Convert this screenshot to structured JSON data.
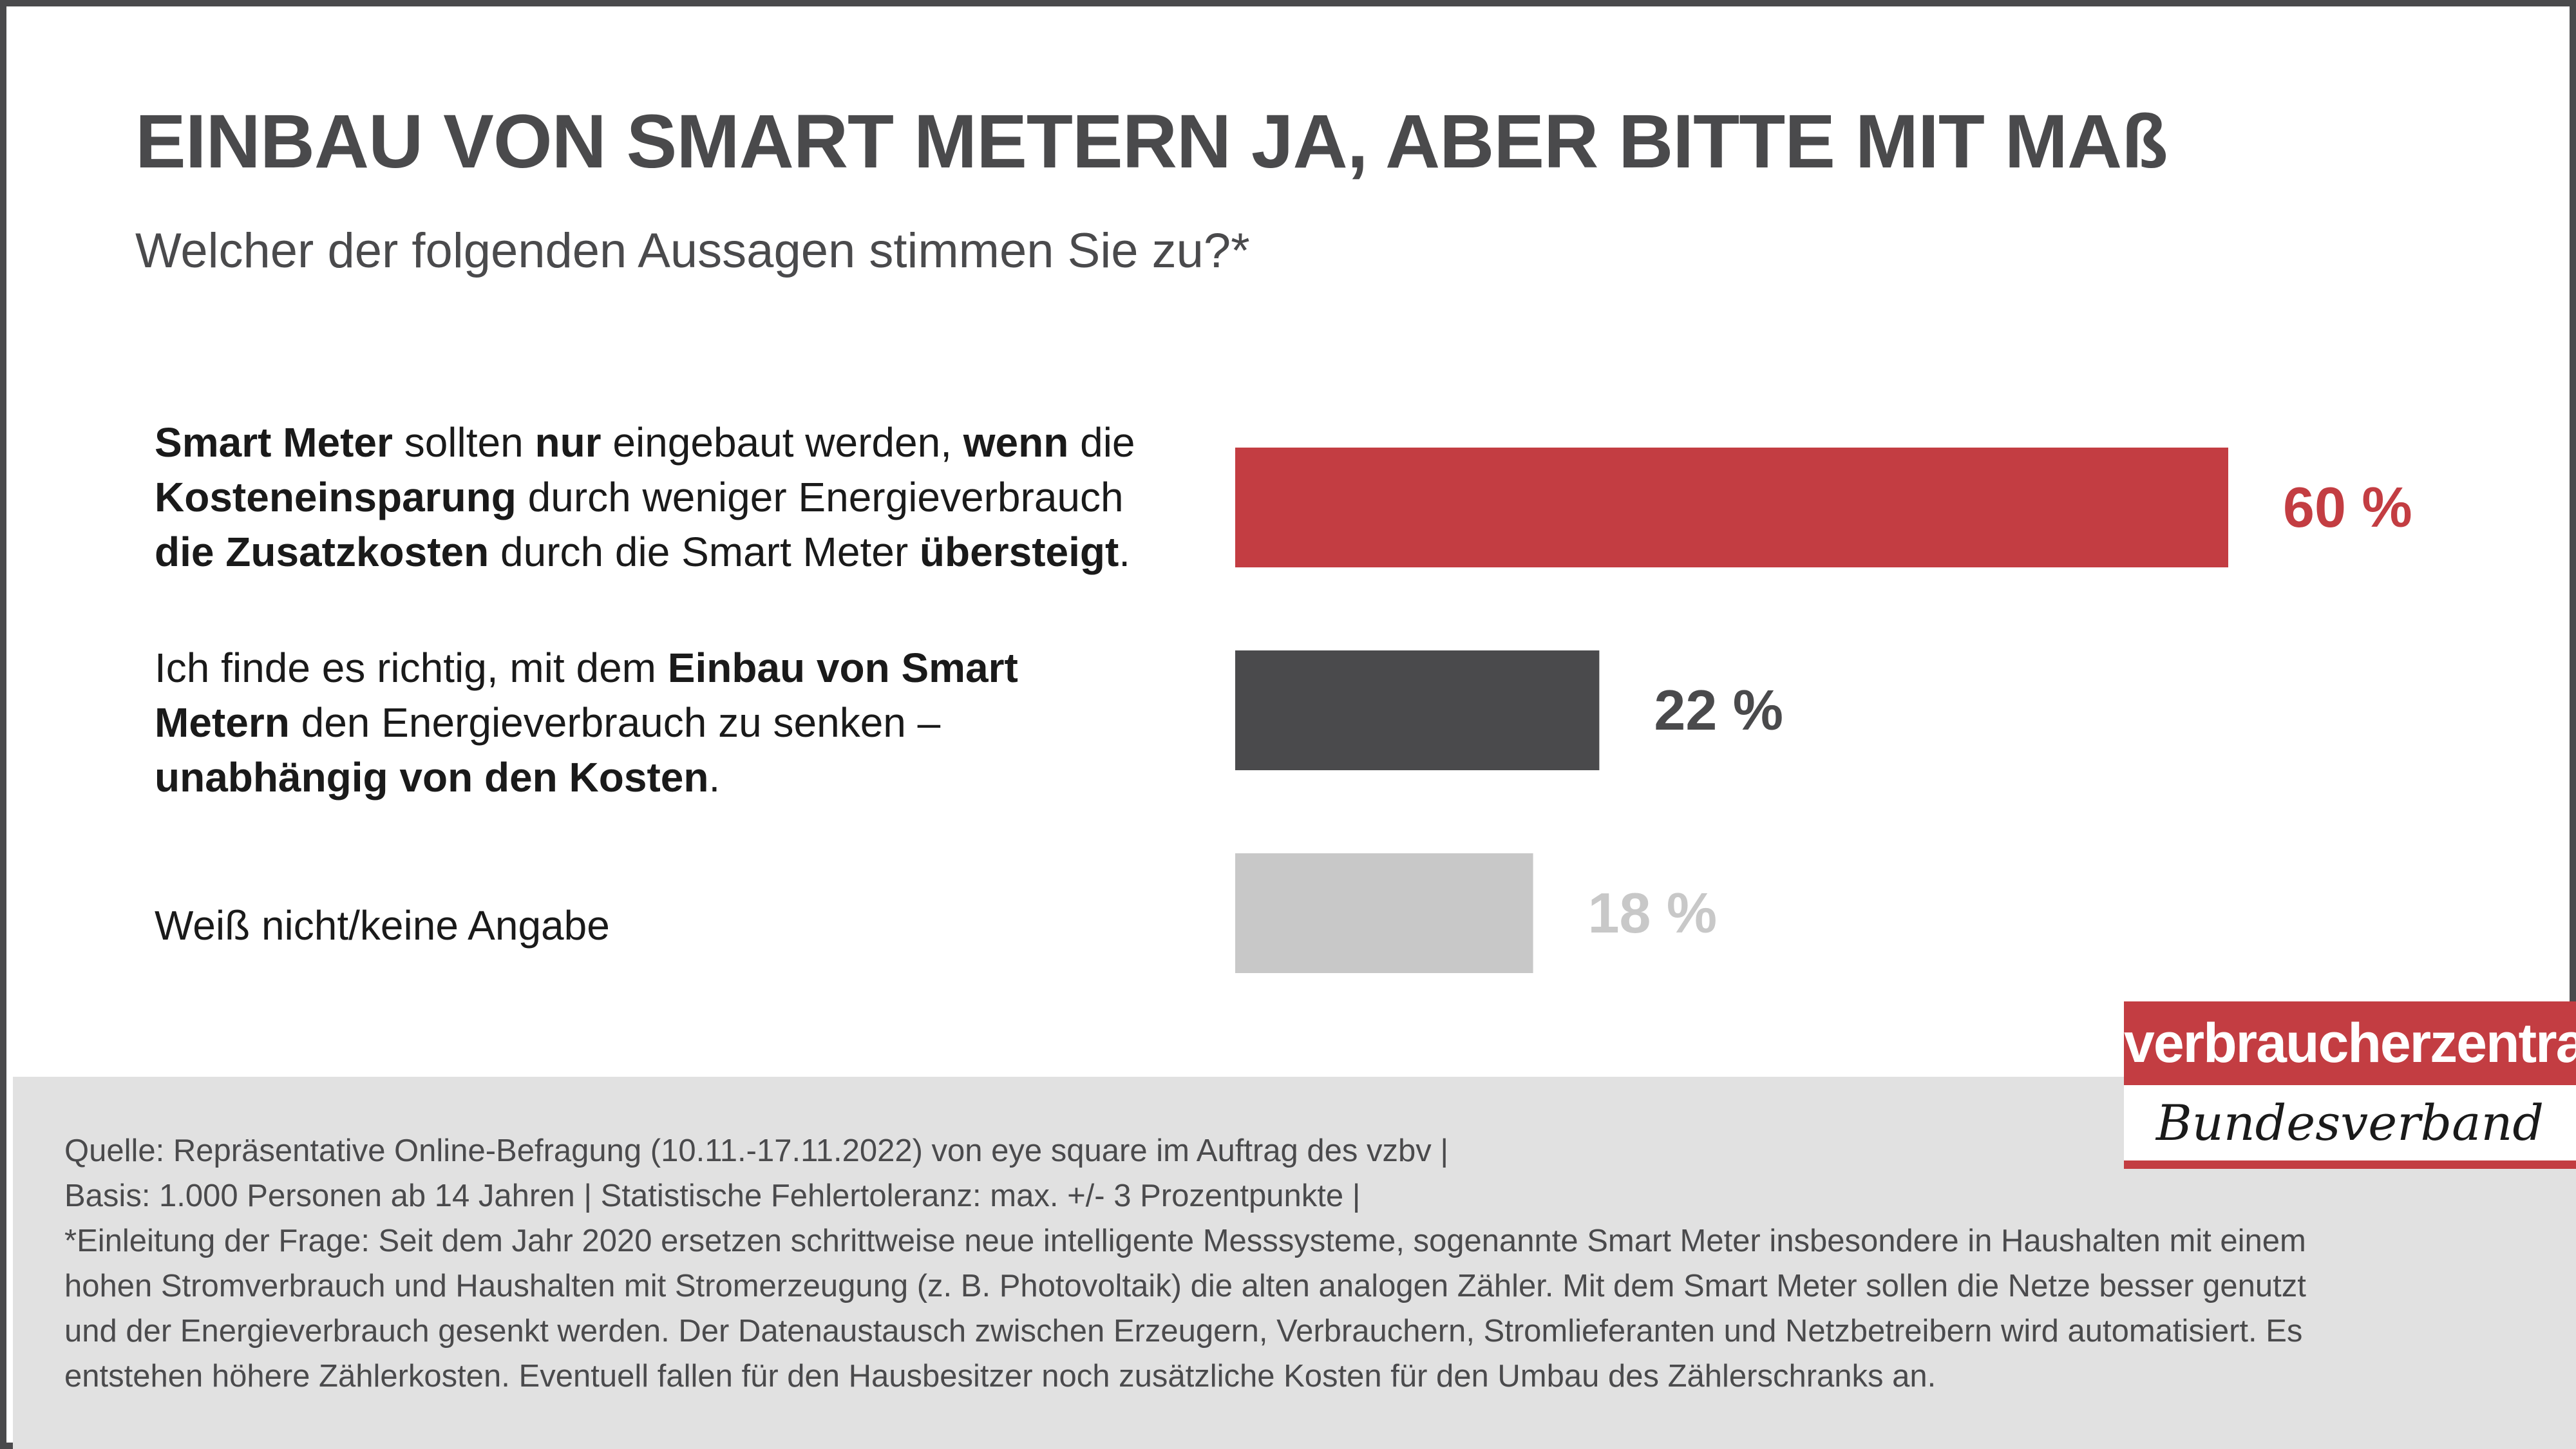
{
  "header": {
    "title": "EINBAU VON SMART METERN JA, ABER BITTE MIT MAß",
    "subtitle": "Welcher der folgenden Aussagen stimmen Sie zu?*"
  },
  "statements": [
    {
      "segments": [
        {
          "text": "Smart Meter",
          "bold": true
        },
        {
          "text": " sollten ",
          "bold": false
        },
        {
          "text": "nur",
          "bold": true
        },
        {
          "text": " eingebaut werden, ",
          "bold": false
        },
        {
          "text": "wenn",
          "bold": true
        },
        {
          "text": " die ",
          "bold": false
        },
        {
          "br": true
        },
        {
          "text": "Kosteneinsparung",
          "bold": true
        },
        {
          "text": " durch weniger Energieverbrauch ",
          "bold": false
        },
        {
          "br": true
        },
        {
          "text": "die Zusatzkosten",
          "bold": true
        },
        {
          "text": " durch die Smart Meter ",
          "bold": false
        },
        {
          "text": "übersteigt",
          "bold": true
        },
        {
          "text": ".",
          "bold": false
        }
      ]
    },
    {
      "segments": [
        {
          "text": "Ich finde es richtig, mit dem ",
          "bold": false
        },
        {
          "text": "Einbau von Smart",
          "bold": true
        },
        {
          "br": true
        },
        {
          "text": "Metern",
          "bold": true
        },
        {
          "text": " den Energieverbrauch zu senken – ",
          "bold": false
        },
        {
          "br": true
        },
        {
          "text": "unabhängig von den Kosten",
          "bold": true
        },
        {
          "text": ".",
          "bold": false
        }
      ]
    },
    {
      "segments": [
        {
          "text": "Weiß nicht/keine Angabe",
          "bold": false
        }
      ]
    }
  ],
  "chart_data": {
    "type": "bar",
    "orientation": "horizontal",
    "categories": [
      "Smart Meter sollten nur eingebaut werden, wenn die Kosteneinsparung durch weniger Energieverbrauch die Zusatzkosten durch die Smart Meter übersteigt.",
      "Ich finde es richtig, mit dem Einbau von Smart Metern den Energieverbrauch zu senken – unabhängig von den Kosten.",
      "Weiß nicht/keine Angabe"
    ],
    "values": [
      60,
      22,
      18
    ],
    "value_labels": [
      "60 %",
      "22 %",
      "18 %"
    ],
    "colors": [
      "#c33d42",
      "#4a4a4c",
      "#c8c8c8"
    ],
    "label_colors": [
      "#c33d42",
      "#4a4a4c",
      "#c8c8c8"
    ],
    "grid": false,
    "legend": "none"
  },
  "footer": {
    "source_lines": [
      "Quelle: Repräsentative Online-Befragung (10.11.-17.11.2022) von eye square im Auftrag des vzbv |",
      "Basis: 1.000 Personen ab 14 Jahren | Statistische Fehlertoleranz: max. +/- 3 Prozentpunkte |",
      "*Einleitung der Frage: Seit dem Jahr 2020 ersetzen schrittweise neue intelligente Messsysteme, sogenannte Smart Meter insbesondere in Haushalten mit einem",
      "hohen Stromverbrauch und Haushalten mit Stromerzeugung (z. B. Photovoltaik) die alten analogen Zähler. Mit dem Smart Meter sollen die Netze besser genutzt",
      "und der Energieverbrauch gesenkt werden. Der Datenaustausch zwischen Erzeugern, Verbrauchern, Stromlieferanten und Netzbetreibern wird automatisiert. Es",
      "entstehen höhere Zählerkosten. Eventuell fallen für den Hausbesitzer noch zusätzliche Kosten für den Umbau des Zählerschranks an."
    ]
  },
  "logo": {
    "top": "verbraucherzentrale",
    "bottom": "Bundesverband",
    "color": "#c33d42"
  }
}
